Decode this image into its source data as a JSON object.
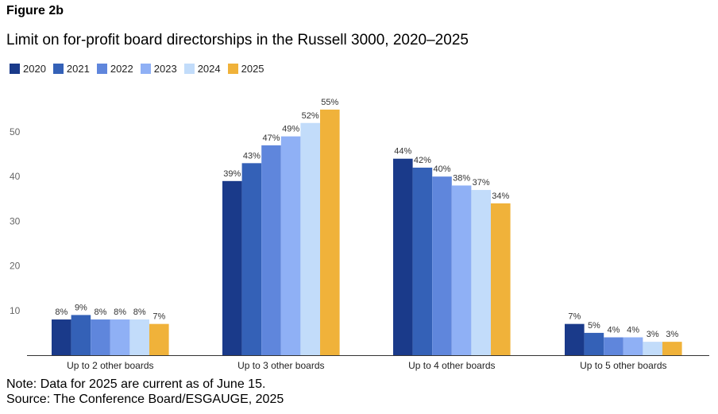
{
  "figure_label": "Figure 2b",
  "chart_data": {
    "type": "bar",
    "title": "Limit on for-profit board directorships in the Russell 3000, 2020–2025",
    "categories": [
      "Up to 2 other boards",
      "Up to 3 other boards",
      "Up to 4 other boards",
      "Up to 5 other boards"
    ],
    "series": [
      {
        "name": "2020",
        "color": "#1a3a8a",
        "values": [
          8,
          39,
          44,
          7
        ],
        "labels": [
          "8%",
          "39%",
          "44%",
          "7%"
        ]
      },
      {
        "name": "2021",
        "color": "#3461b7",
        "values": [
          9,
          43,
          42,
          5
        ],
        "labels": [
          "9%",
          "43%",
          "42%",
          "5%"
        ]
      },
      {
        "name": "2022",
        "color": "#5f86dc",
        "values": [
          8,
          47,
          40,
          4
        ],
        "labels": [
          "8%",
          "47%",
          "40%",
          "4%"
        ]
      },
      {
        "name": "2023",
        "color": "#8fb0f5",
        "values": [
          8,
          49,
          38,
          4
        ],
        "labels": [
          "8%",
          "49%",
          "38%",
          "4%"
        ]
      },
      {
        "name": "2024",
        "color": "#c2dcfa",
        "values": [
          8,
          52,
          37,
          3
        ],
        "labels": [
          "8%",
          "52%",
          "37%",
          "3%"
        ]
      },
      {
        "name": "2025",
        "color": "#f0b23a",
        "values": [
          7,
          55,
          34,
          3
        ],
        "labels": [
          "7%",
          "55%",
          "34%",
          "3%"
        ]
      }
    ],
    "yticks": [
      "10",
      "20",
      "30",
      "40",
      "50"
    ],
    "ylim": [
      0,
      55
    ],
    "grid": false,
    "legend_position": "top-left",
    "xlabel": "",
    "ylabel": ""
  },
  "note": "Note: Data for 2025 are current as of June 15.",
  "source": "Source: The Conference Board/ESGAUGE, 2025"
}
